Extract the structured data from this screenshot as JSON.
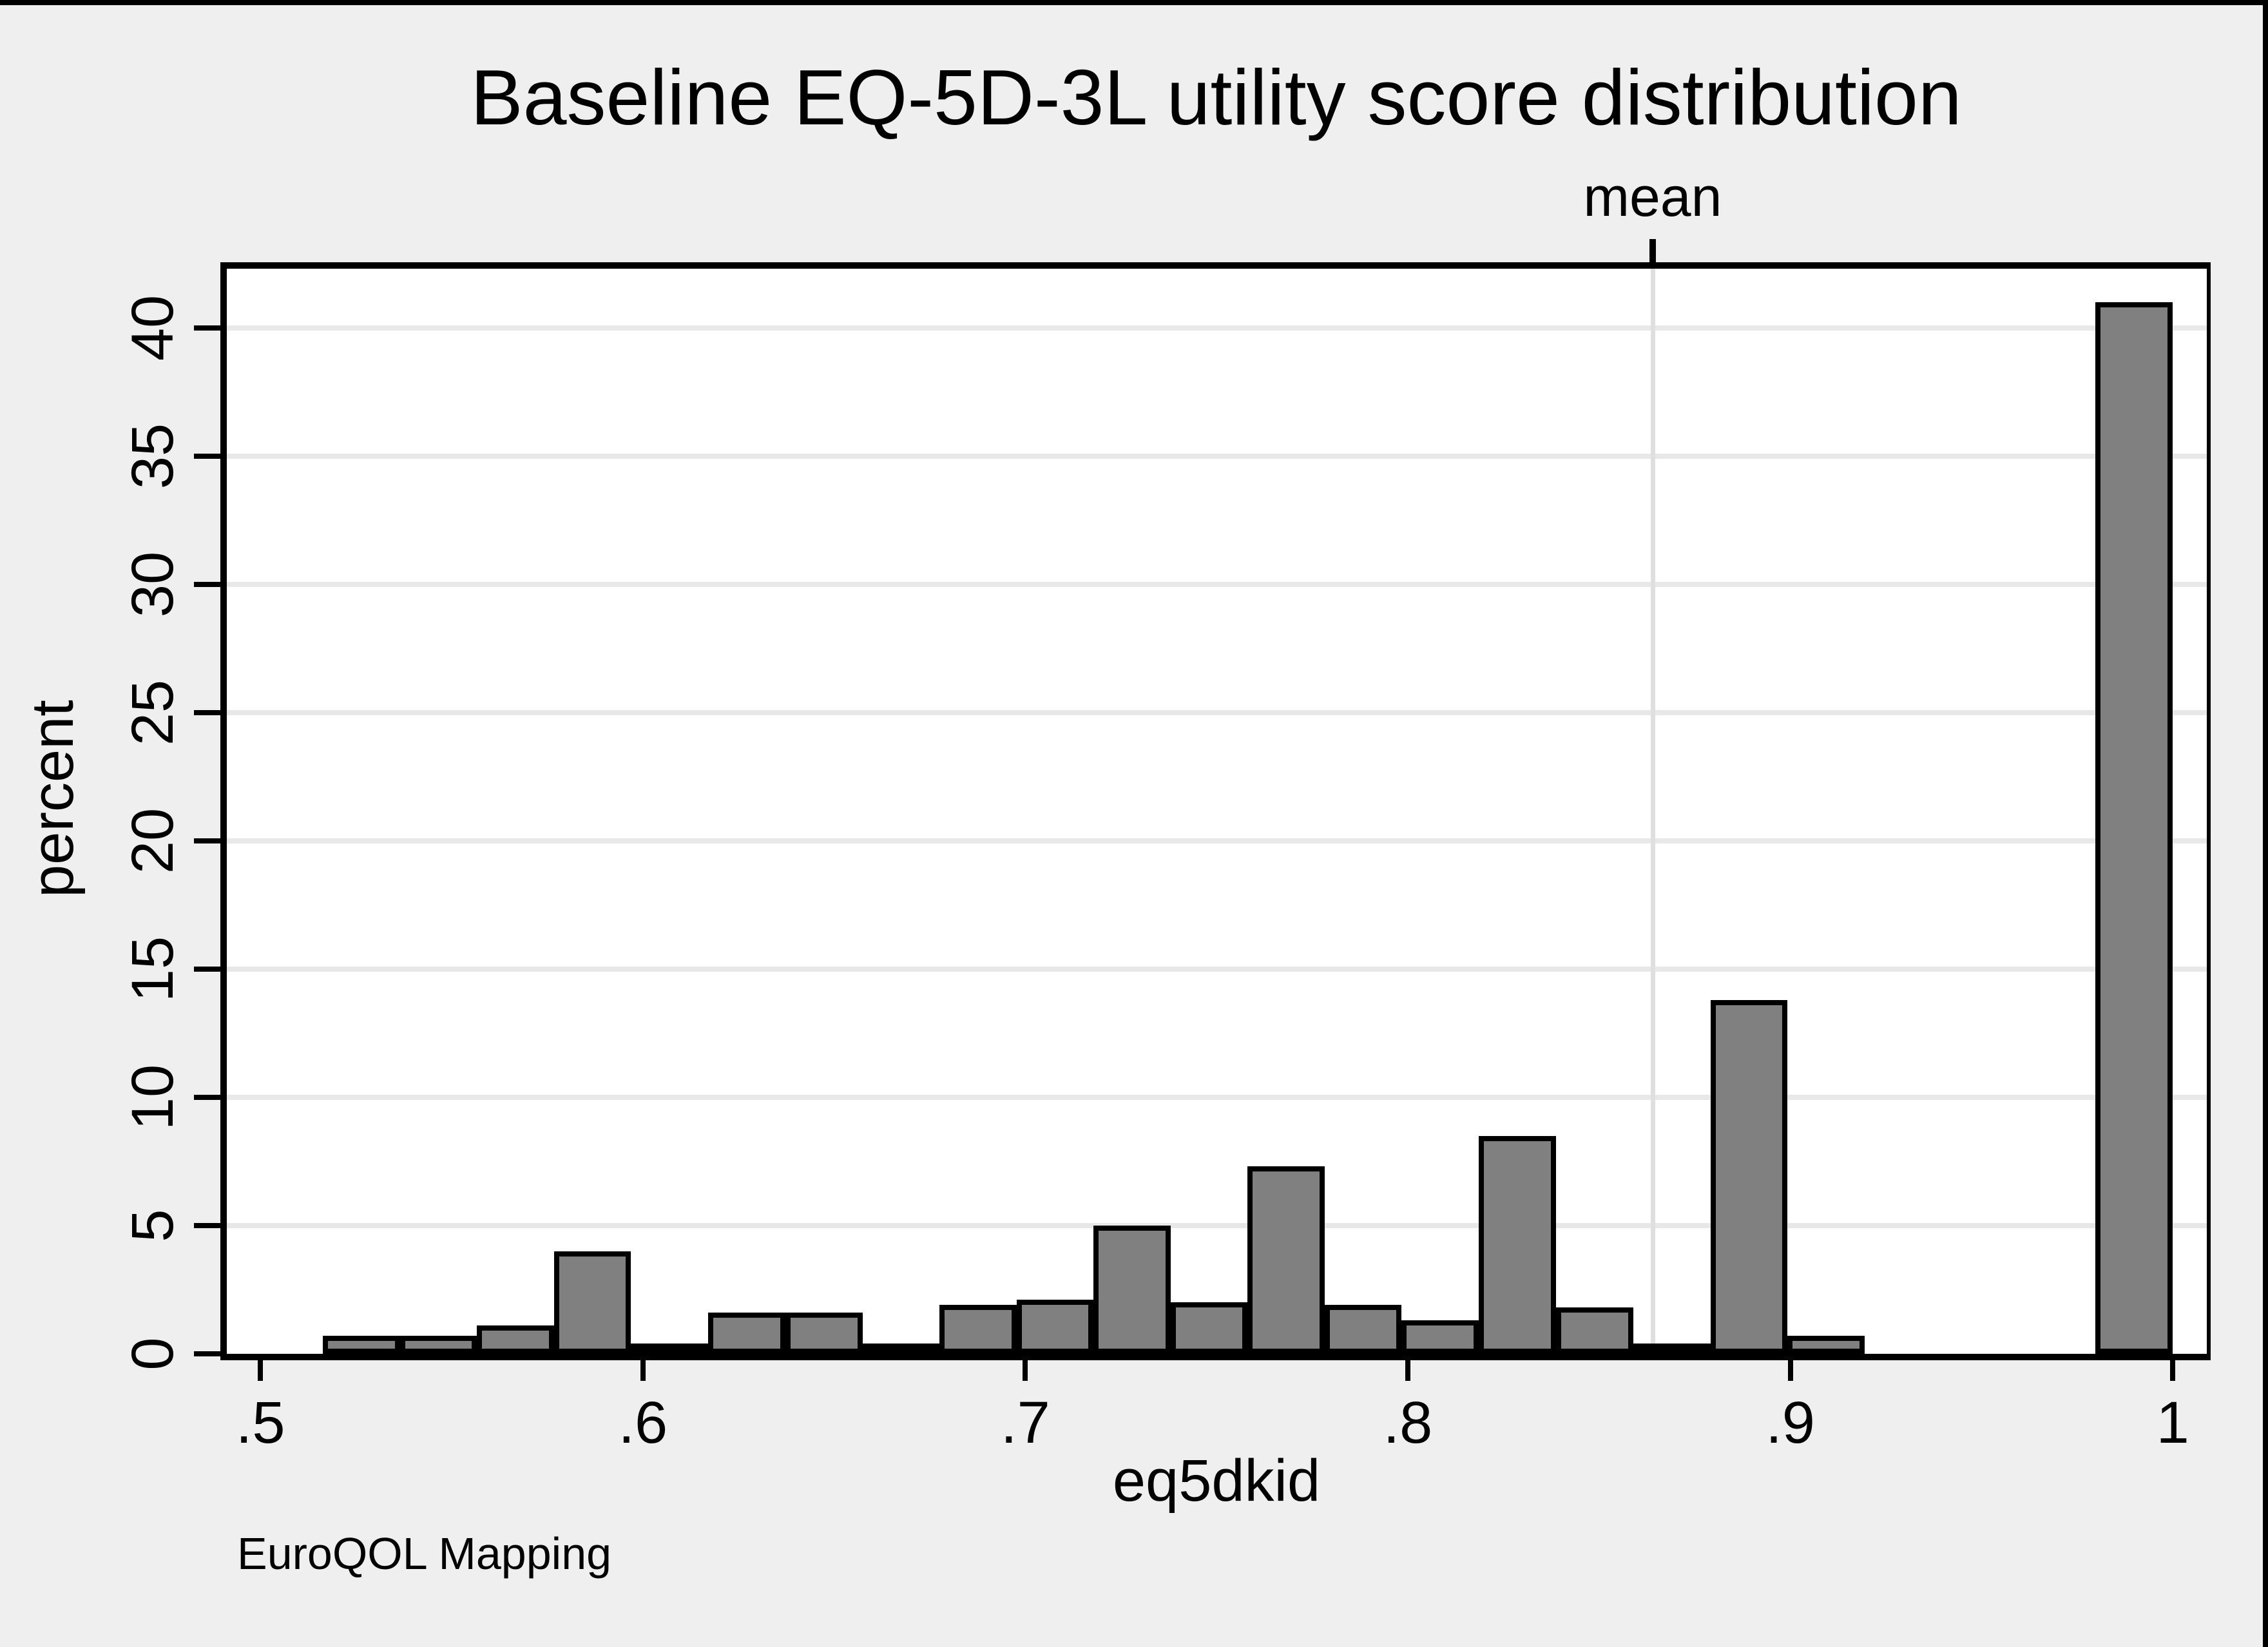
{
  "title": "Baseline EQ-5D-3L utility score distribution",
  "footer": "EuroQOL Mapping",
  "colors": {
    "page_background": "#efefef",
    "plot_background": "#ffffff",
    "bar_fill": "#808080",
    "bar_stroke": "#000000",
    "grid_color": "#e8e8e8",
    "mean_line_color": "#dfdfdf",
    "axis_color": "#000000"
  },
  "chart_data": {
    "type": "bar",
    "title": "Baseline EQ-5D-3L utility score distribution",
    "xlabel": "eq5dkid",
    "ylabel": "percent",
    "xlim": [
      0.4912,
      1.0089
    ],
    "ylim": [
      0,
      42.3
    ],
    "grid": "horizontal-only",
    "legend": "none",
    "x_ticks": [
      {
        "value": 0.5,
        "label": ".5"
      },
      {
        "value": 0.6,
        "label": ".6"
      },
      {
        "value": 0.7,
        "label": ".7"
      },
      {
        "value": 0.8,
        "label": ".8"
      },
      {
        "value": 0.9,
        "label": ".9"
      },
      {
        "value": 1.0,
        "label": "1"
      }
    ],
    "y_ticks": [
      {
        "value": 0,
        "label": "0"
      },
      {
        "value": 5,
        "label": "5"
      },
      {
        "value": 10,
        "label": "10"
      },
      {
        "value": 15,
        "label": "15"
      },
      {
        "value": 20,
        "label": "20"
      },
      {
        "value": 25,
        "label": "25"
      },
      {
        "value": 30,
        "label": "30"
      },
      {
        "value": 35,
        "label": "35"
      },
      {
        "value": 40,
        "label": "40"
      }
    ],
    "mean_line": {
      "label": "mean",
      "x": 0.864
    },
    "bin_width": 0.0202,
    "bins": [
      {
        "x0": 0.5163,
        "x1": 0.5365,
        "pct": 0.7
      },
      {
        "x0": 0.5365,
        "x1": 0.5566,
        "pct": 0.7
      },
      {
        "x0": 0.5566,
        "x1": 0.5768,
        "pct": 1.1
      },
      {
        "x0": 0.5768,
        "x1": 0.5969,
        "pct": 4.0
      },
      {
        "x0": 0.5969,
        "x1": 0.6171,
        "pct": 0.4
      },
      {
        "x0": 0.6171,
        "x1": 0.6372,
        "pct": 1.6
      },
      {
        "x0": 0.6372,
        "x1": 0.6574,
        "pct": 1.6
      },
      {
        "x0": 0.6574,
        "x1": 0.6775,
        "pct": 0.3
      },
      {
        "x0": 0.6775,
        "x1": 0.6977,
        "pct": 1.9
      },
      {
        "x0": 0.6977,
        "x1": 0.7178,
        "pct": 2.1
      },
      {
        "x0": 0.7178,
        "x1": 0.738,
        "pct": 5.0
      },
      {
        "x0": 0.738,
        "x1": 0.7581,
        "pct": 2.0
      },
      {
        "x0": 0.7581,
        "x1": 0.7783,
        "pct": 7.3
      },
      {
        "x0": 0.7783,
        "x1": 0.7984,
        "pct": 1.9
      },
      {
        "x0": 0.7984,
        "x1": 0.8186,
        "pct": 1.3
      },
      {
        "x0": 0.8186,
        "x1": 0.8387,
        "pct": 8.5
      },
      {
        "x0": 0.8387,
        "x1": 0.8589,
        "pct": 1.8
      },
      {
        "x0": 0.8589,
        "x1": 0.8791,
        "pct": 0.2
      },
      {
        "x0": 0.8791,
        "x1": 0.8992,
        "pct": 13.8
      },
      {
        "x0": 0.8992,
        "x1": 0.9194,
        "pct": 0.7
      },
      {
        "x0": 0.9194,
        "x1": 0.9395,
        "pct": 0.0
      },
      {
        "x0": 0.9395,
        "x1": 0.9597,
        "pct": 0.0
      },
      {
        "x0": 0.9597,
        "x1": 0.9798,
        "pct": 0.0
      },
      {
        "x0": 0.9798,
        "x1": 1.0,
        "pct": 41.0
      }
    ]
  }
}
